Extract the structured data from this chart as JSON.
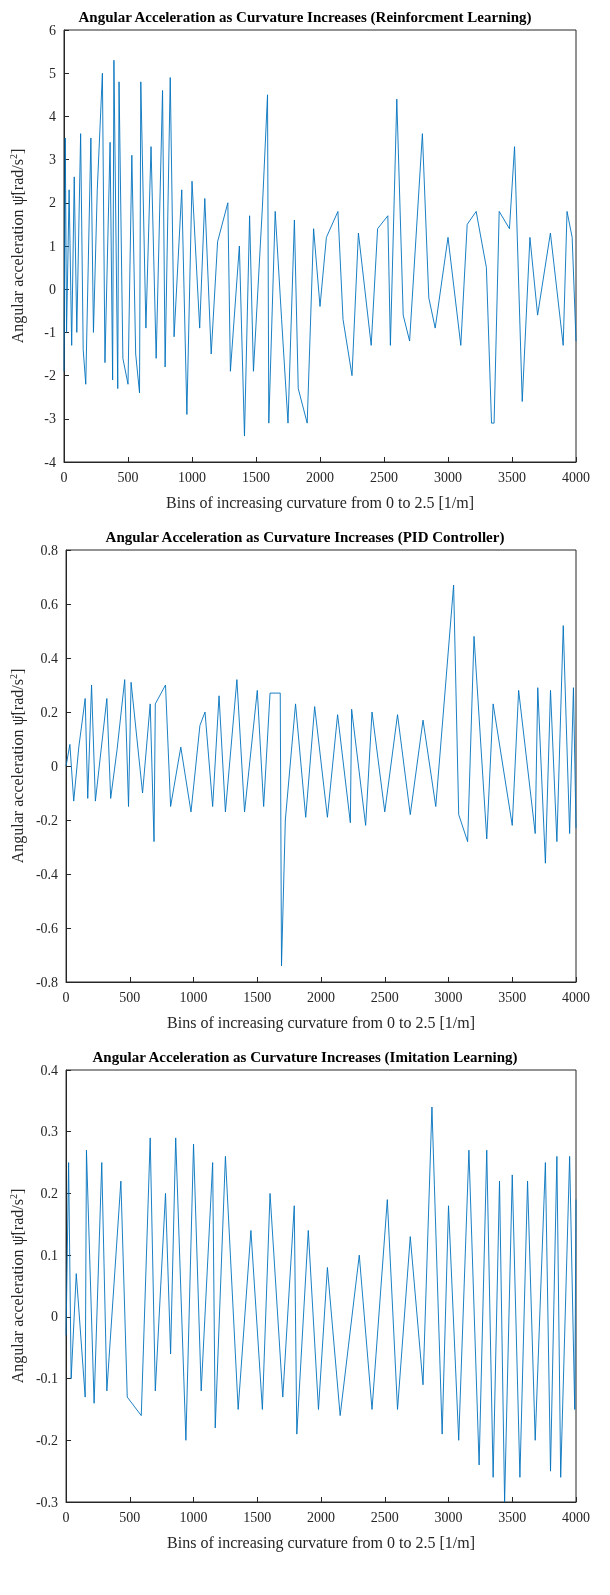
{
  "chart_data": [
    {
      "type": "line",
      "title": "Angular Acceleration as Curvature Increases (Reinforcment Learning)",
      "xlabel": "Bins of increasing curvature from 0 to 2.5 [1/m]",
      "ylabel": "Angular acceleration ψ̈[rad/s$^{2}$]",
      "xlim": [
        0,
        4000
      ],
      "xticks": [
        0,
        500,
        1000,
        1500,
        2000,
        2500,
        3000,
        3500,
        4000
      ],
      "ylim": [
        -4,
        6
      ],
      "yticks": [
        -4,
        -3,
        -2,
        -1,
        0,
        1,
        2,
        3,
        4,
        5,
        6
      ],
      "grid": false,
      "marker": "none",
      "line_style": "solid",
      "series": [
        {
          "color": "#0072bd",
          "x": [
            0,
            10,
            20,
            40,
            60,
            80,
            100,
            130,
            150,
            170,
            210,
            230,
            260,
            300,
            320,
            360,
            380,
            390,
            420,
            430,
            460,
            500,
            530,
            560,
            590,
            600,
            640,
            680,
            720,
            770,
            790,
            830,
            860,
            920,
            960,
            1000,
            1060,
            1100,
            1150,
            1200,
            1280,
            1300,
            1370,
            1410,
            1450,
            1480,
            1550,
            1590,
            1600,
            1650,
            1700,
            1750,
            1800,
            1830,
            1900,
            1950,
            2000,
            2050,
            2140,
            2180,
            2250,
            2300,
            2400,
            2450,
            2530,
            2550,
            2600,
            2650,
            2700,
            2800,
            2850,
            2900,
            3000,
            3100,
            3150,
            3220,
            3300,
            3340,
            3360,
            3400,
            3480,
            3520,
            3580,
            3640,
            3700,
            3800,
            3900,
            3930,
            3970,
            4000
          ],
          "values": [
            -1.9,
            3.5,
            -1.0,
            2.3,
            -1.3,
            2.6,
            -1.0,
            3.6,
            -1.4,
            -2.2,
            3.5,
            -1.0,
            2.3,
            5.0,
            -1.7,
            3.4,
            -2.1,
            5.3,
            -2.3,
            4.8,
            -1.6,
            -2.2,
            3.1,
            -1.5,
            -2.4,
            4.8,
            -0.9,
            3.3,
            -1.6,
            4.6,
            -1.8,
            4.9,
            -1.1,
            2.3,
            -2.9,
            2.5,
            -0.9,
            2.1,
            -1.5,
            1.1,
            2.0,
            -1.9,
            1.0,
            -3.4,
            1.7,
            -1.9,
            1.9,
            4.5,
            -3.1,
            1.8,
            -0.7,
            -3.1,
            1.6,
            -2.3,
            -3.1,
            1.4,
            -0.4,
            1.2,
            1.8,
            -0.7,
            -2.0,
            1.3,
            -1.3,
            1.4,
            1.7,
            -1.3,
            4.4,
            -0.6,
            -1.2,
            3.6,
            -0.2,
            -0.9,
            1.2,
            -1.3,
            1.5,
            1.8,
            0.5,
            -3.1,
            -3.1,
            1.8,
            1.4,
            3.3,
            -2.6,
            1.2,
            -0.6,
            1.3,
            -1.3,
            1.8,
            1.2,
            -1.2
          ]
        }
      ]
    },
    {
      "type": "line",
      "title": "Angular Acceleration as Curvature Increases (PID Controller)",
      "xlabel": "Bins of increasing curvature from 0 to 2.5 [1/m]",
      "ylabel": "Angular acceleration ψ̈[rad/s$^{2}$]",
      "xlim": [
        0,
        4000
      ],
      "xticks": [
        0,
        500,
        1000,
        1500,
        2000,
        2500,
        3000,
        3500,
        4000
      ],
      "ylim": [
        -0.8,
        0.8
      ],
      "yticks": [
        -0.8,
        -0.6,
        -0.4,
        -0.2,
        0,
        0.2,
        0.4,
        0.6,
        0.8
      ],
      "grid": false,
      "marker": "none",
      "line_style": "solid",
      "series": [
        {
          "color": "#0072bd",
          "x": [
            0,
            30,
            60,
            100,
            150,
            170,
            200,
            230,
            320,
            350,
            400,
            460,
            490,
            510,
            600,
            660,
            690,
            700,
            780,
            820,
            900,
            980,
            1050,
            1090,
            1150,
            1200,
            1250,
            1340,
            1400,
            1500,
            1550,
            1600,
            1680,
            1690,
            1720,
            1800,
            1880,
            1950,
            2050,
            2130,
            2230,
            2240,
            2350,
            2400,
            2500,
            2600,
            2700,
            2800,
            2900,
            3040,
            3080,
            3150,
            3200,
            3300,
            3350,
            3500,
            3550,
            3680,
            3700,
            3760,
            3800,
            3850,
            3900,
            3950,
            3980,
            4000
          ],
          "values": [
            0.0,
            0.08,
            -0.13,
            0.07,
            0.25,
            -0.12,
            0.3,
            -0.13,
            0.25,
            -0.12,
            0.06,
            0.32,
            -0.15,
            0.31,
            -0.1,
            0.23,
            -0.28,
            0.23,
            0.3,
            -0.15,
            0.07,
            -0.17,
            0.15,
            0.2,
            -0.15,
            0.26,
            -0.17,
            0.32,
            -0.17,
            0.28,
            -0.15,
            0.27,
            0.27,
            -0.74,
            -0.2,
            0.23,
            -0.19,
            0.22,
            -0.19,
            0.19,
            -0.21,
            0.21,
            -0.22,
            0.2,
            -0.17,
            0.19,
            -0.18,
            0.17,
            -0.15,
            0.67,
            -0.18,
            -0.28,
            0.48,
            -0.27,
            0.23,
            -0.22,
            0.28,
            -0.25,
            0.29,
            -0.36,
            0.28,
            -0.28,
            0.52,
            -0.25,
            0.29,
            -0.23
          ]
        }
      ]
    },
    {
      "type": "line",
      "title": "Angular Acceleration as Curvature Increases (Imitation Learning)",
      "xlabel": "Bins of increasing curvature from 0 to 2.5 [1/m]",
      "ylabel": "Angular acceleration ψ̈[rad/s$^{2}$]",
      "xlim": [
        0,
        4000
      ],
      "xticks": [
        0,
        500,
        1000,
        1500,
        2000,
        2500,
        3000,
        3500,
        4000
      ],
      "ylim": [
        -0.3,
        0.4
      ],
      "yticks": [
        -0.3,
        -0.2,
        -0.1,
        0,
        0.1,
        0.2,
        0.3,
        0.4
      ],
      "grid": false,
      "marker": "none",
      "line_style": "solid",
      "series": [
        {
          "color": "#0072bd",
          "x": [
            0,
            20,
            40,
            80,
            150,
            160,
            220,
            280,
            320,
            430,
            480,
            590,
            660,
            700,
            780,
            820,
            860,
            940,
            1000,
            1060,
            1150,
            1170,
            1250,
            1350,
            1450,
            1540,
            1600,
            1700,
            1790,
            1810,
            1900,
            1980,
            2050,
            2150,
            2300,
            2400,
            2520,
            2600,
            2700,
            2800,
            2870,
            2950,
            3000,
            3080,
            3160,
            3240,
            3300,
            3350,
            3400,
            3440,
            3500,
            3560,
            3620,
            3680,
            3760,
            3800,
            3850,
            3880,
            3950,
            3990,
            4000
          ],
          "values": [
            -0.03,
            0.25,
            -0.1,
            0.07,
            -0.13,
            0.27,
            -0.14,
            0.25,
            -0.12,
            0.22,
            -0.13,
            -0.16,
            0.29,
            -0.12,
            0.2,
            -0.06,
            0.29,
            -0.2,
            0.28,
            -0.12,
            0.25,
            -0.18,
            0.26,
            -0.15,
            0.14,
            -0.15,
            0.2,
            -0.13,
            0.18,
            -0.19,
            0.14,
            -0.15,
            0.08,
            -0.16,
            0.1,
            -0.15,
            0.19,
            -0.15,
            0.13,
            -0.11,
            0.34,
            -0.19,
            0.18,
            -0.2,
            0.27,
            -0.24,
            0.27,
            -0.26,
            0.22,
            -0.3,
            0.23,
            -0.26,
            0.22,
            -0.2,
            0.25,
            -0.25,
            0.26,
            -0.26,
            0.26,
            -0.15,
            0.19
          ]
        }
      ]
    }
  ]
}
